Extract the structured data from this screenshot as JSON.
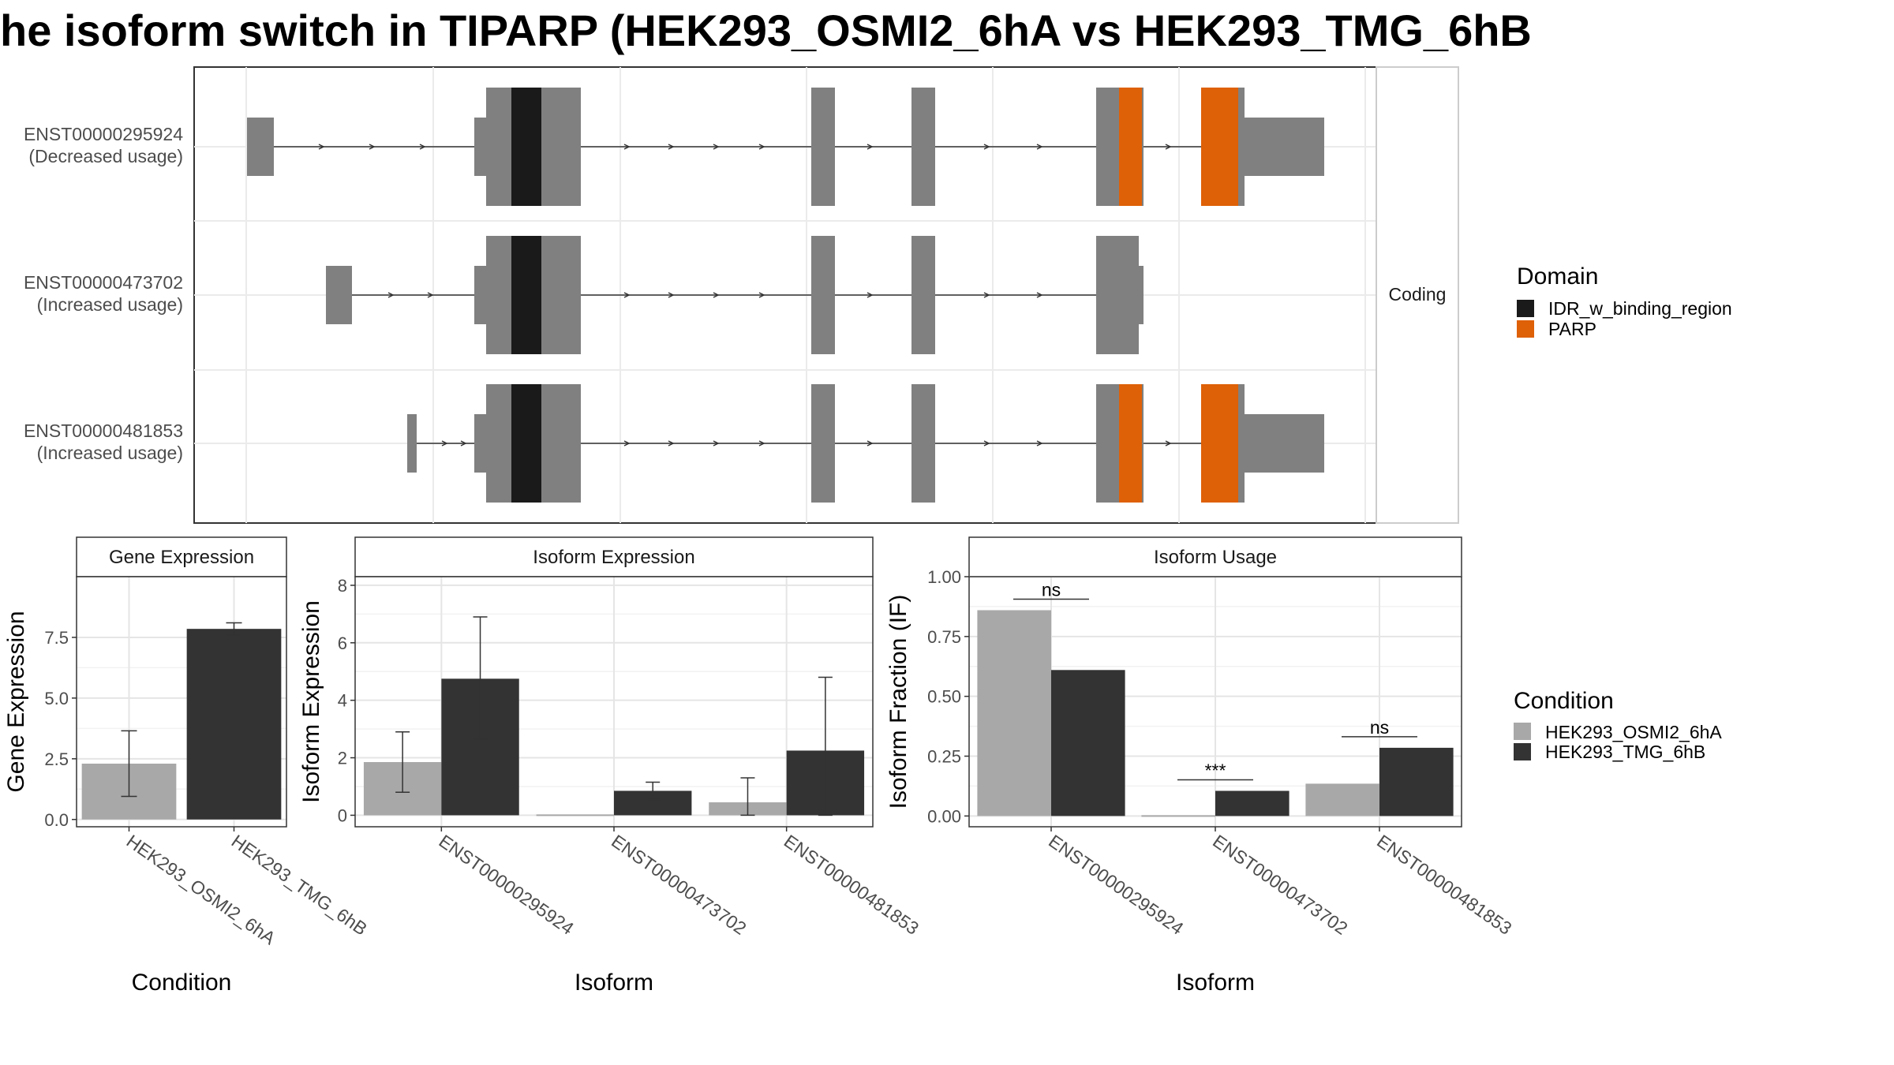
{
  "title": "he isoform switch in TIPARP (HEK293_OSMI2_6hA vs HEK293_TMG_6hB",
  "colors": {
    "exon": "#808080",
    "IDR_w_binding_region": "#1a1a1a",
    "PARP": "#de6007",
    "cond_A": "#a8a8a8",
    "cond_B": "#333333"
  },
  "structure": {
    "strip_label": "Coding",
    "transcripts": [
      {
        "id": "ENST00000295924",
        "usage": "(Decreased usage)"
      },
      {
        "id": "ENST00000473702",
        "usage": "(Increased usage)"
      },
      {
        "id": "ENST00000481853",
        "usage": "(Increased usage)"
      }
    ]
  },
  "legend_domain": {
    "title": "Domain",
    "items": [
      {
        "label": "IDR_w_binding_region",
        "color": "#1a1a1a"
      },
      {
        "label": "PARP",
        "color": "#de6007"
      }
    ]
  },
  "legend_condition": {
    "title": "Condition",
    "items": [
      {
        "label": "HEK293_OSMI2_6hA",
        "color": "#a8a8a8"
      },
      {
        "label": "HEK293_TMG_6hB",
        "color": "#333333"
      }
    ]
  },
  "chart_data": [
    {
      "type": "bar",
      "title": "Gene Expression",
      "xlabel": "Condition",
      "ylabel": "Gene Expression",
      "categories": [
        "HEK293_OSMI2_6hA",
        "HEK293_TMG_6hB"
      ],
      "values": [
        2.3,
        7.85
      ],
      "error_low": [
        0.95,
        7.6
      ],
      "error_high": [
        3.65,
        8.1
      ],
      "yticks": [
        0.0,
        2.5,
        5.0,
        7.5
      ],
      "ylim": [
        -0.3,
        10.0
      ]
    },
    {
      "type": "bar",
      "title": "Isoform Expression",
      "xlabel": "Isoform",
      "ylabel": "Isoform Expression",
      "categories": [
        "ENST00000295924",
        "ENST00000473702",
        "ENST00000481853"
      ],
      "series": [
        {
          "name": "HEK293_OSMI2_6hA",
          "values": [
            1.85,
            0.0,
            0.45
          ],
          "error_low": [
            0.8,
            0.0,
            0.0
          ],
          "error_high": [
            2.9,
            0.0,
            1.3
          ]
        },
        {
          "name": "HEK293_TMG_6hB",
          "values": [
            4.75,
            0.85,
            2.25
          ],
          "error_low": [
            2.65,
            0.55,
            0.0
          ],
          "error_high": [
            6.9,
            1.15,
            4.8
          ]
        }
      ],
      "yticks": [
        0,
        2,
        4,
        6,
        8
      ],
      "ylim": [
        -0.4,
        8.3
      ]
    },
    {
      "type": "bar",
      "title": "Isoform Usage",
      "xlabel": "Isoform",
      "ylabel": "Isoform Fraction (IF)",
      "categories": [
        "ENST00000295924",
        "ENST00000473702",
        "ENST00000481853"
      ],
      "series": [
        {
          "name": "HEK293_OSMI2_6hA",
          "values": [
            0.86,
            0.0,
            0.135
          ]
        },
        {
          "name": "HEK293_TMG_6hB",
          "values": [
            0.61,
            0.105,
            0.285
          ]
        }
      ],
      "significance": [
        "ns",
        "***",
        "ns"
      ],
      "yticks": [
        0.0,
        0.25,
        0.5,
        0.75,
        1.0
      ],
      "ytick_labels": [
        "0.00",
        "0.25",
        "0.50",
        "0.75",
        "1.00"
      ],
      "ylim": [
        -0.045,
        1.0
      ]
    }
  ]
}
